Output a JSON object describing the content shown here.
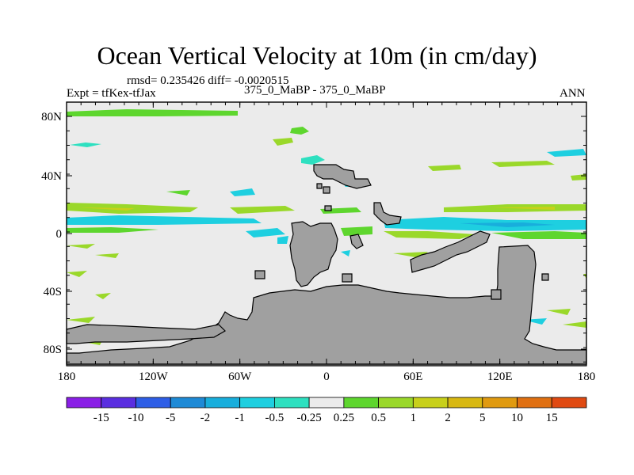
{
  "title": "Ocean Vertical Velocity at 10m (in cm/day)",
  "stats": "rmsd= 0.235426 diff= -0.0020515",
  "experiment": "Expt = tfKex-tfJax",
  "comparison": "375_0_MaBP - 375_0_MaBP",
  "season": "ANN",
  "y_ticks": [
    "80N",
    "40N",
    "0",
    "40S",
    "80S"
  ],
  "x_ticks": [
    "180",
    "120W",
    "60W",
    "0",
    "60E",
    "120E",
    "180"
  ],
  "colorbar": {
    "labels": [
      "-15",
      "-10",
      "-5",
      "-2",
      "-1",
      "-0.5",
      "-0.25",
      "0.25",
      "0.5",
      "1",
      "2",
      "5",
      "10",
      "15"
    ],
    "colors": [
      "#8a1fe6",
      "#5a2ee0",
      "#2e5ee6",
      "#1e8ad6",
      "#18aedc",
      "#1ecfe0",
      "#2ee0c0",
      "#ebebeb",
      "#5ed62e",
      "#9ad82a",
      "#c8d01a",
      "#d8b812",
      "#e09a10",
      "#e07012",
      "#e04a12"
    ]
  },
  "colors": {
    "ocean": "#ebebeb",
    "land": "#a0a0a0"
  }
}
